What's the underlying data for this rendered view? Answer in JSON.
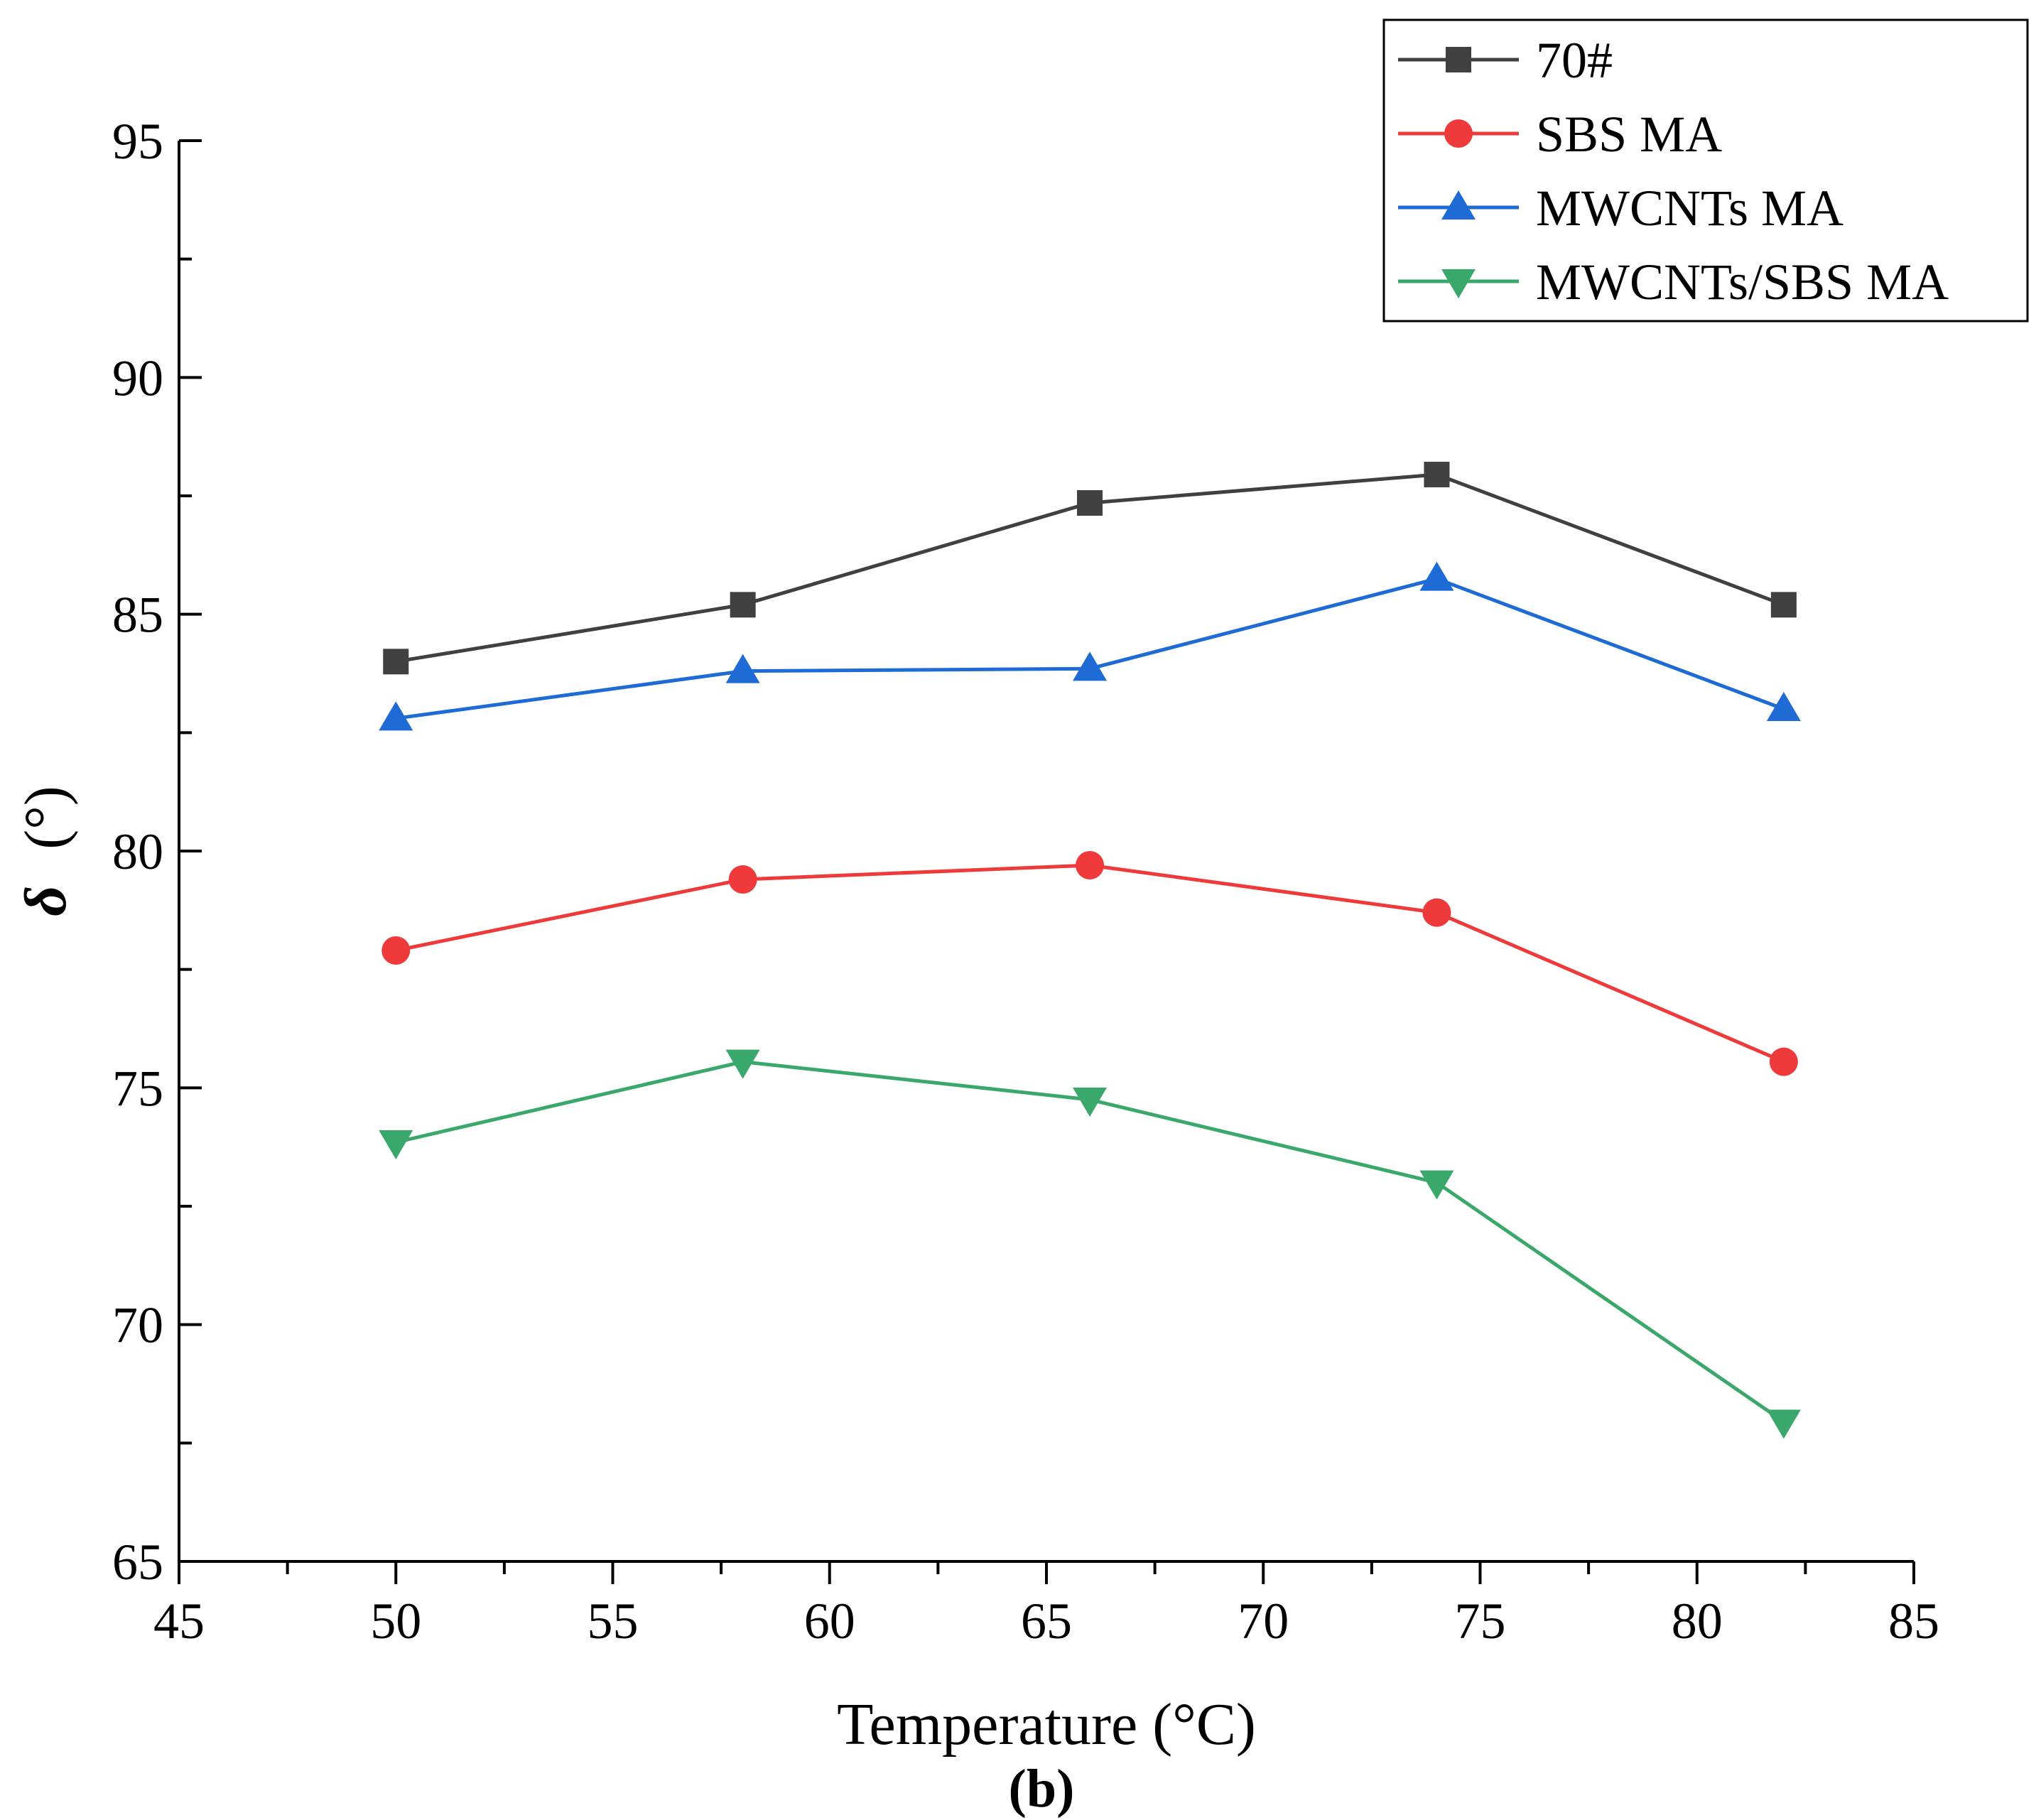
{
  "chart_data": {
    "type": "line",
    "xlabel": "Temperature (°C)",
    "ylabel_symbol": "δ",
    "ylabel_unit": "(°)",
    "caption": "(b)",
    "xlim": [
      45,
      85
    ],
    "ylim": [
      65,
      95
    ],
    "x_ticks": [
      45,
      50,
      55,
      60,
      65,
      70,
      75,
      80,
      85
    ],
    "y_ticks": [
      65,
      70,
      75,
      80,
      85,
      90,
      95
    ],
    "x": [
      50,
      58,
      66,
      74,
      82
    ],
    "legend_position": "top-right",
    "grid": false,
    "series": [
      {
        "name": "70#",
        "values": [
          84.0,
          85.2,
          87.35,
          87.95,
          85.2
        ],
        "color": "#404040",
        "marker": "square"
      },
      {
        "name": "SBS MA",
        "values": [
          77.9,
          79.4,
          79.7,
          78.7,
          75.55
        ],
        "color": "#ee3a3a",
        "marker": "circle"
      },
      {
        "name": "MWCNTs MA",
        "values": [
          82.8,
          83.8,
          83.85,
          85.75,
          83.0
        ],
        "color": "#1f6bd6",
        "marker": "triangle-up"
      },
      {
        "name": "MWCNTs/SBS MA",
        "values": [
          73.85,
          75.55,
          74.75,
          73.0,
          67.95
        ],
        "color": "#3aa86a",
        "marker": "triangle-down"
      }
    ]
  }
}
